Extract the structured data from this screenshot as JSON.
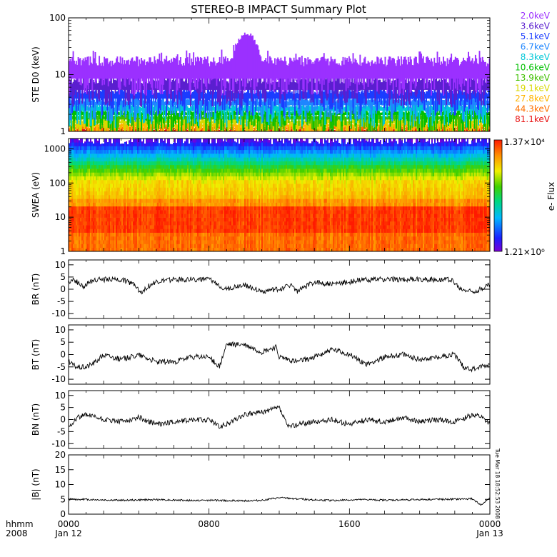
{
  "title": "STEREO-B IMPACT Summary Plot",
  "timestamp": "Tue Mar 18 18:52:53 2008",
  "time_axis": {
    "label_top": "hhmm",
    "label_bottom": "2008",
    "ticks": [
      {
        "hour": 0,
        "label": "0000",
        "sub": "Jan 12"
      },
      {
        "hour": 8,
        "label": "0800",
        "sub": ""
      },
      {
        "hour": 16,
        "label": "1600",
        "sub": ""
      },
      {
        "hour": 24,
        "label": "0000",
        "sub": "Jan 13"
      }
    ]
  },
  "colorbar": {
    "label": "e- Flux",
    "max_label": "1.37×10⁴",
    "min_label": "1.21×10⁰"
  },
  "chart_data": [
    {
      "type": "line",
      "panel": "ste",
      "ylabel": "STE D0 (keV)",
      "yscale": "log",
      "ylim": [
        1,
        100
      ],
      "yticks": [
        {
          "v": 1,
          "label": "1"
        },
        {
          "v": 10,
          "label": "10"
        },
        {
          "v": 100,
          "label": "100"
        }
      ],
      "series": [
        {
          "name": "2.0keV",
          "color": "#9b30ff",
          "base": 14,
          "spread": 7
        },
        {
          "name": "3.6keV",
          "color": "#5a1fcf",
          "base": 7,
          "spread": 2.5
        },
        {
          "name": "5.1keV",
          "color": "#1a3cff",
          "base": 4.6,
          "spread": 1.3
        },
        {
          "name": "6.7keV",
          "color": "#1f86ff",
          "base": 3.3,
          "spread": 0.8
        },
        {
          "name": "8.3keV",
          "color": "#00c8d8",
          "base": 2.6,
          "spread": 0.5
        },
        {
          "name": "10.6keV",
          "color": "#00c000",
          "base": 2.1,
          "spread": 0.35
        },
        {
          "name": "13.9keV",
          "color": "#40c000",
          "base": 1.8,
          "spread": 0.25
        },
        {
          "name": "19.1keV",
          "color": "#d8d800",
          "base": 1.5,
          "spread": 0.2
        },
        {
          "name": "27.8keV",
          "color": "#ffb400",
          "base": 1.3,
          "spread": 0.15
        },
        {
          "name": "44.3keV",
          "color": "#ff7000",
          "base": 1.15,
          "spread": 0.1
        },
        {
          "name": "81.1keV",
          "color": "#e81010",
          "base": 1.05,
          "spread": 0.08
        }
      ],
      "peak": {
        "hour": 10.1,
        "value": 50
      }
    },
    {
      "type": "heatmap",
      "panel": "swea",
      "ylabel": "SWEA (eV)",
      "yscale": "log",
      "ylim": [
        1,
        2000
      ],
      "yticks": [
        {
          "v": 1,
          "label": "1"
        },
        {
          "v": 10,
          "label": "10"
        },
        {
          "v": 100,
          "label": "100"
        },
        {
          "v": 1000,
          "label": "1000"
        }
      ]
    },
    {
      "type": "line",
      "panel": "br",
      "ylabel": "BR (nT)",
      "ylim": [
        -12,
        12
      ],
      "yticks": [
        {
          "v": -10,
          "label": "-10"
        },
        {
          "v": -5,
          "label": "-5"
        },
        {
          "v": 0,
          "label": "0"
        },
        {
          "v": 5,
          "label": "5"
        },
        {
          "v": 10,
          "label": "10"
        }
      ],
      "x": [
        0,
        0.3,
        0.8,
        1.5,
        2.0,
        3.0,
        3.8,
        4.1,
        4.5,
        5.0,
        6.0,
        7.0,
        7.5,
        8.0,
        9.0,
        9.5,
        10.0,
        11.0,
        12.0,
        12.7,
        13.0,
        14.0,
        15.0,
        16.0,
        17.0,
        18.0,
        19.0,
        20.0,
        21.0,
        21.8,
        22.3,
        23.0,
        23.5,
        24.0
      ],
      "y": [
        3,
        4,
        1,
        4,
        4,
        4,
        2,
        -1.5,
        1,
        3,
        4,
        4,
        4,
        4,
        0,
        1,
        2,
        -1,
        0,
        2,
        -1,
        3,
        2,
        3,
        4,
        4,
        4,
        4,
        4,
        4,
        0,
        -1,
        0,
        2
      ]
    },
    {
      "type": "line",
      "panel": "bt",
      "ylabel": "BT (nT)",
      "ylim": [
        -12,
        12
      ],
      "yticks": [
        {
          "v": -10,
          "label": "-10"
        },
        {
          "v": -5,
          "label": "-5"
        },
        {
          "v": 0,
          "label": "0"
        },
        {
          "v": 5,
          "label": "5"
        },
        {
          "v": 10,
          "label": "10"
        }
      ],
      "x": [
        0,
        0.5,
        1.0,
        1.5,
        2.0,
        3.0,
        4.0,
        5.0,
        6.0,
        7.0,
        8.0,
        8.6,
        9.0,
        10.0,
        11.0,
        11.8,
        12.0,
        13.0,
        14.0,
        15.0,
        16.0,
        17.0,
        18.0,
        19.0,
        20.0,
        21.0,
        22.0,
        22.5,
        23.0,
        24.0
      ],
      "y": [
        -3,
        -5,
        -5,
        -3,
        0,
        -2,
        0,
        -3,
        -3,
        -1,
        -1,
        -5,
        4,
        4,
        1,
        3,
        -1,
        -3,
        -1,
        2,
        0,
        -4,
        -1,
        0,
        -2,
        -1,
        0,
        -5,
        -6,
        -4
      ]
    },
    {
      "type": "line",
      "panel": "bn",
      "ylabel": "BN (nT)",
      "ylim": [
        -12,
        12
      ],
      "yticks": [
        {
          "v": -10,
          "label": "-10"
        },
        {
          "v": -5,
          "label": "-5"
        },
        {
          "v": 0,
          "label": "0"
        },
        {
          "v": 5,
          "label": "5"
        },
        {
          "v": 10,
          "label": "10"
        }
      ],
      "x": [
        0,
        0.5,
        1.0,
        2.0,
        3.0,
        4.0,
        5.0,
        6.0,
        7.0,
        8.0,
        8.6,
        9.0,
        10.0,
        11.0,
        12.0,
        12.5,
        13.0,
        14.0,
        15.0,
        16.0,
        17.0,
        18.0,
        19.0,
        20.0,
        21.0,
        22.0,
        23.0,
        23.5,
        24.0
      ],
      "y": [
        -3,
        1,
        2,
        0,
        -1,
        1,
        -2,
        -1,
        0,
        0,
        -3,
        -2,
        2,
        3,
        5,
        -3,
        -2,
        -1,
        0,
        -2,
        0,
        -1,
        1,
        -1,
        0,
        -1,
        2,
        1,
        -2
      ]
    },
    {
      "type": "line",
      "panel": "bt_mag",
      "ylabel": "|B| (nT)",
      "ylim": [
        0,
        20
      ],
      "yticks": [
        {
          "v": 0,
          "label": "0"
        },
        {
          "v": 5,
          "label": "5"
        },
        {
          "v": 10,
          "label": "10"
        },
        {
          "v": 15,
          "label": "15"
        },
        {
          "v": 20,
          "label": "20"
        }
      ],
      "x": [
        0,
        1,
        2,
        3,
        4,
        5,
        6,
        7,
        8,
        9,
        10,
        11,
        12,
        13,
        14,
        15,
        16,
        17,
        18,
        19,
        20,
        21,
        22,
        23,
        23.5,
        24
      ],
      "y": [
        5,
        5,
        4.8,
        4.7,
        4.8,
        4.9,
        4.8,
        4.6,
        4.7,
        4.6,
        4.5,
        4.7,
        5.5,
        5.2,
        4.8,
        4.6,
        4.8,
        4.9,
        4.7,
        4.8,
        4.9,
        5,
        5,
        5.2,
        3,
        5.5
      ]
    }
  ]
}
